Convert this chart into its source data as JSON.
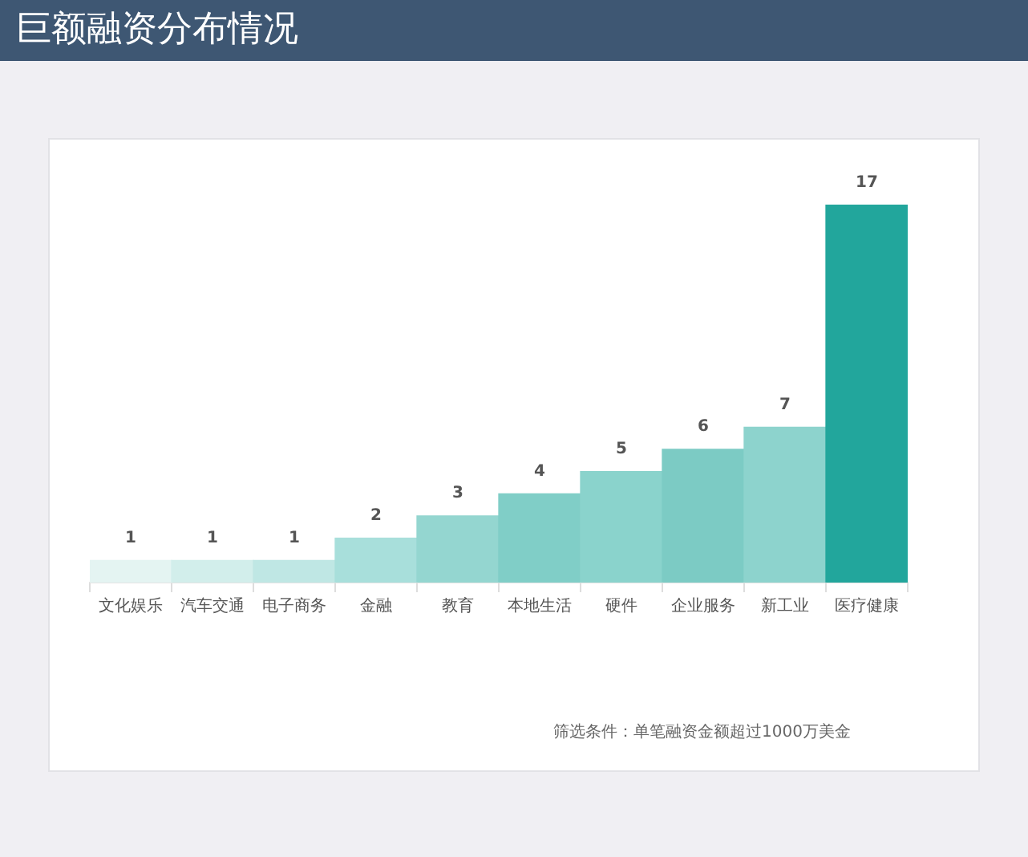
{
  "chart_data": {
    "type": "bar",
    "title": "巨额融资分布情况",
    "categories": [
      "文化娱乐",
      "汽车交通",
      "电子商务",
      "金融",
      "教育",
      "本地生活",
      "硬件",
      "企业服务",
      "新工业",
      "医疗健康"
    ],
    "values": [
      1,
      1,
      1,
      2,
      3,
      4,
      5,
      6,
      7,
      17
    ],
    "colors": [
      "#e4f4f2",
      "#d2eeeb",
      "#bfe7e4",
      "#a8dfdb",
      "#94d6d0",
      "#80cec7",
      "#8ad3cc",
      "#7ccbc4",
      "#8dd3cd",
      "#22a69c"
    ],
    "data_labels": true,
    "annotations": [
      "筛选条件：单笔融资金额超过1000万美金"
    ]
  }
}
